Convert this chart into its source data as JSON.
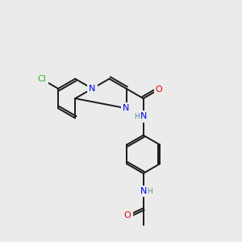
{
  "bg_color": "#ebebeb",
  "bond_color": "#1a1a1a",
  "bond_width": 1.4,
  "colors": {
    "N": "#0000ee",
    "O": "#ee0000",
    "Cl": "#22bb22",
    "H": "#4a9090",
    "C": "#1a1a1a"
  },
  "font_size": 7.5,
  "figsize": [
    3.0,
    3.0
  ],
  "dpi": 100
}
